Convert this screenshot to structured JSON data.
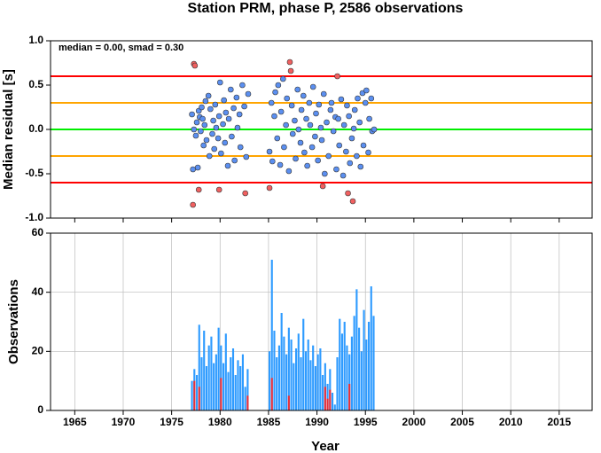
{
  "chart_data": [
    {
      "type": "scatter",
      "title": "Station PRM, phase P, 2586 observations",
      "annotation": "median = 0.00, smad = 0.30",
      "ylabel": "Median residual [s]",
      "xlim": [
        1962.5,
        2018.4
      ],
      "ylim": [
        -1.0,
        1.0
      ],
      "yticks": [
        {
          "value": -1.0,
          "label": "-1.0"
        },
        -0.5,
        {
          "value": 0,
          "label": "0.0"
        },
        0.5,
        {
          "value": 1.0,
          "label": "1.0"
        }
      ],
      "ref_lines": [
        {
          "value": 0.6,
          "color": "#ff0000"
        },
        {
          "value": 0.3,
          "color": "#ffa500"
        },
        {
          "value": 0,
          "color": "#00ee00"
        },
        {
          "value": -0.3,
          "color": "#ffa500"
        },
        {
          "value": -0.6,
          "color": "#ff0000"
        }
      ],
      "series": [
        {
          "color": "#5b8ff0",
          "x": [
            1977.1,
            1977.2,
            1977.3,
            1977.5,
            1977.6,
            1977.7,
            1977.8,
            1977.9,
            1978.0,
            1978.1,
            1978.2,
            1978.3,
            1978.4,
            1978.5,
            1978.6,
            1978.8,
            1978.9,
            1979.0,
            1979.2,
            1979.3,
            1979.4,
            1979.5,
            1979.6,
            1979.8,
            1979.9,
            1980.0,
            1980.1,
            1980.3,
            1980.4,
            1980.5,
            1980.6,
            1980.8,
            1980.9,
            1981.1,
            1981.2,
            1981.4,
            1981.5,
            1981.7,
            1981.8,
            1982.0,
            1982.1,
            1982.3,
            1982.5,
            1982.7,
            1982.9,
            1985.1,
            1985.3,
            1985.4,
            1985.6,
            1985.7,
            1985.9,
            1986.0,
            1986.2,
            1986.3,
            1986.5,
            1986.6,
            1986.8,
            1986.9,
            1987.1,
            1987.4,
            1987.5,
            1987.7,
            1987.8,
            1988.0,
            1988.1,
            1988.3,
            1988.4,
            1988.6,
            1988.7,
            1988.9,
            1989.0,
            1989.2,
            1989.3,
            1989.5,
            1989.6,
            1989.8,
            1989.9,
            1990.1,
            1990.2,
            1990.4,
            1990.5,
            1990.7,
            1990.8,
            1991.0,
            1991.2,
            1991.4,
            1991.5,
            1991.7,
            1991.9,
            1992.0,
            1992.2,
            1992.3,
            1992.5,
            1992.7,
            1992.8,
            1993.0,
            1993.1,
            1993.3,
            1993.4,
            1993.6,
            1993.8,
            1993.9,
            1994.1,
            1994.2,
            1994.4,
            1994.5,
            1994.7,
            1994.8,
            1995.0,
            1995.1,
            1995.3,
            1995.4,
            1995.6,
            1995.7,
            1995.9
          ],
          "values": [
            0.17,
            -0.45,
            0.0,
            -0.07,
            0.08,
            -0.43,
            0.21,
            0.14,
            -0.02,
            0.25,
            0.12,
            -0.18,
            0.05,
            0.32,
            -0.12,
            0.38,
            -0.3,
            0.23,
            -0.05,
            0.1,
            -0.22,
            0.28,
            0.02,
            -0.1,
            0.15,
            0.53,
            -0.27,
            0.06,
            0.33,
            -0.15,
            0.19,
            -0.41,
            0.12,
            0.45,
            -0.08,
            0.24,
            -0.35,
            0.36,
            0.02,
            0.17,
            -0.2,
            0.5,
            0.26,
            -0.31,
            0.4,
            -0.25,
            0.3,
            -0.36,
            0.15,
            0.42,
            -0.1,
            0.5,
            -0.4,
            0.2,
            0.57,
            -0.2,
            0.05,
            0.35,
            -0.47,
            0.27,
            -0.05,
            0.1,
            -0.33,
            0.45,
            0.0,
            -0.15,
            0.22,
            0.38,
            -0.26,
            0.12,
            -0.41,
            0.3,
            0.05,
            -0.2,
            0.48,
            -0.08,
            0.18,
            -0.35,
            0.28,
            0.02,
            -0.12,
            0.4,
            -0.5,
            0.08,
            -0.3,
            0.22,
            0.3,
            -0.02,
            0.14,
            -0.45,
            0.12,
            -0.18,
            0.34,
            -0.52,
            0.05,
            -0.25,
            0.27,
            0.15,
            -0.38,
            -0.1,
            0.01,
            0.22,
            -0.3,
            0.35,
            0.08,
            -0.42,
            0.41,
            -0.18,
            0.3,
            0.44,
            -0.26,
            0.12,
            0.35,
            -0.02,
            0.0
          ]
        },
        {
          "color": "#f06060",
          "x": [
            1977.3,
            1977.4,
            1977.2,
            1977.8,
            1979.9,
            1982.6,
            1985.1,
            1987.2,
            1987.3,
            1990.6,
            1992.1,
            1993.2,
            1993.7
          ],
          "values": [
            0.74,
            0.72,
            -0.85,
            -0.68,
            -0.68,
            -0.72,
            -0.66,
            0.76,
            0.66,
            -0.64,
            0.6,
            -0.72,
            -0.81
          ]
        }
      ]
    },
    {
      "type": "histogram",
      "xlabel": "Year",
      "ylabel": "Observations",
      "xlim": [
        1962.5,
        2018.4
      ],
      "ylim": [
        0,
        60
      ],
      "xticks": [
        1965,
        1970,
        1975,
        1980,
        1985,
        1990,
        1995,
        2000,
        2005,
        2010,
        2015
      ],
      "yticks": [
        0,
        20,
        40,
        60
      ],
      "grid": true,
      "bins": [
        1977,
        1977.25,
        1977.5,
        1977.75,
        1978,
        1978.25,
        1978.5,
        1978.75,
        1979,
        1979.25,
        1979.5,
        1979.75,
        1980,
        1980.25,
        1980.5,
        1980.75,
        1981,
        1981.25,
        1981.5,
        1981.75,
        1982,
        1982.25,
        1982.5,
        1982.75,
        1983,
        1983.25,
        1983.5,
        1983.75,
        1984,
        1984.25,
        1984.5,
        1984.75,
        1985,
        1985.25,
        1985.5,
        1985.75,
        1986,
        1986.25,
        1986.5,
        1986.75,
        1987,
        1987.25,
        1987.5,
        1987.75,
        1988,
        1988.25,
        1988.5,
        1988.75,
        1989,
        1989.25,
        1989.5,
        1989.75,
        1990,
        1990.25,
        1990.5,
        1990.75,
        1991,
        1991.25,
        1991.5,
        1991.75,
        1992,
        1992.25,
        1992.5,
        1992.75,
        1993,
        1993.25,
        1993.5,
        1993.75,
        1994,
        1994.25,
        1994.5,
        1994.75,
        1995,
        1995.25,
        1995.5,
        1995.75,
        1996
      ],
      "series": [
        {
          "color": "#2e9bff",
          "values": [
            10,
            14,
            12,
            29,
            18,
            27,
            15,
            22,
            25,
            16,
            19,
            28,
            22,
            16,
            26,
            13,
            18,
            21,
            12,
            17,
            15,
            19,
            8,
            14,
            0,
            0,
            0,
            0,
            0,
            0,
            0,
            0,
            20,
            51,
            27,
            18,
            22,
            33,
            25,
            19,
            28,
            24,
            16,
            21,
            26,
            18,
            31,
            20,
            24,
            17,
            22,
            15,
            19,
            21,
            12,
            16,
            9,
            14,
            6,
            2,
            18,
            31,
            26,
            30,
            22,
            19,
            25,
            32,
            41,
            28,
            20,
            34,
            24,
            30,
            42,
            32
          ]
        },
        {
          "color": "#e8303a",
          "values": [
            0,
            10,
            0,
            8,
            0,
            0,
            0,
            0,
            0,
            0,
            0,
            0,
            11,
            0,
            0,
            0,
            0,
            0,
            0,
            0,
            0,
            0,
            0,
            5,
            0,
            0,
            0,
            0,
            0,
            0,
            0,
            0,
            0,
            11,
            0,
            0,
            0,
            0,
            0,
            0,
            5,
            0,
            0,
            0,
            0,
            0,
            0,
            0,
            0,
            0,
            0,
            0,
            0,
            0,
            0,
            8,
            4,
            7,
            0,
            0,
            0,
            0,
            0,
            0,
            0,
            9,
            0,
            0,
            0,
            0,
            0,
            0,
            0,
            0,
            0,
            0
          ]
        }
      ]
    }
  ]
}
